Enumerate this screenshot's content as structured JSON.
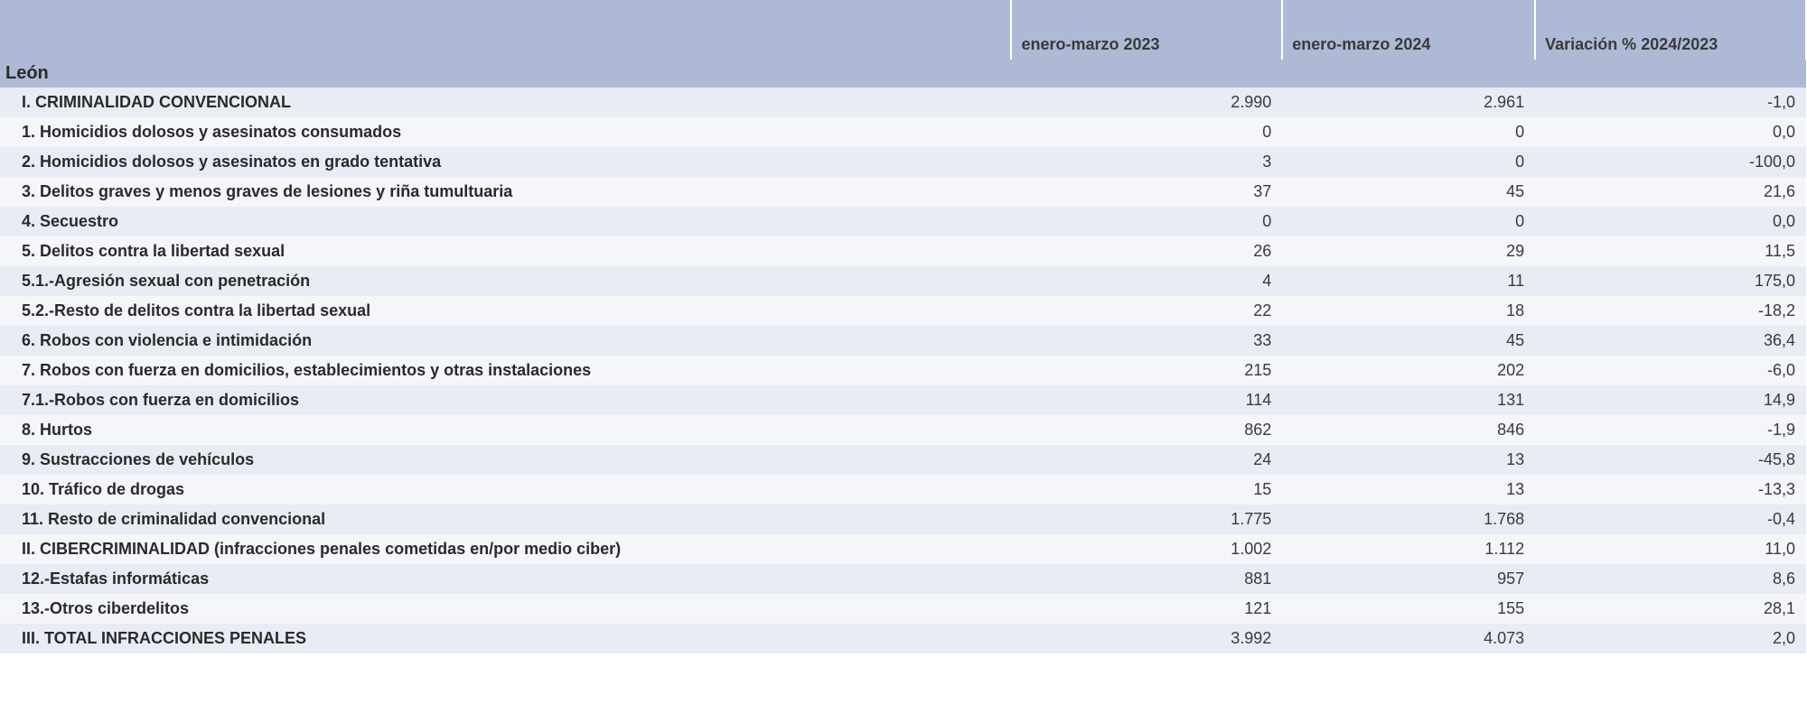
{
  "table": {
    "type": "table",
    "columns": {
      "blank": "",
      "period1": "enero-marzo 2023",
      "period2": "enero-marzo 2024",
      "variation": "Variación % 2024/2023"
    },
    "region_label": "León",
    "rows": [
      {
        "label": "I. CRIMINALIDAD CONVENCIONAL",
        "y1": "2.990",
        "y2": "2.961",
        "var": "-1,0"
      },
      {
        "label": "1. Homicidios dolosos y asesinatos consumados",
        "y1": "0",
        "y2": "0",
        "var": "0,0"
      },
      {
        "label": "2. Homicidios dolosos y asesinatos en grado tentativa",
        "y1": "3",
        "y2": "0",
        "var": "-100,0"
      },
      {
        "label": "3. Delitos graves y menos graves de lesiones y riña tumultuaria",
        "y1": "37",
        "y2": "45",
        "var": "21,6"
      },
      {
        "label": "4. Secuestro",
        "y1": "0",
        "y2": "0",
        "var": "0,0"
      },
      {
        "label": "5. Delitos contra la libertad sexual",
        "y1": "26",
        "y2": "29",
        "var": "11,5"
      },
      {
        "label": "5.1.-Agresión sexual con penetración",
        "y1": "4",
        "y2": "11",
        "var": "175,0"
      },
      {
        "label": "5.2.-Resto de delitos contra la libertad sexual",
        "y1": "22",
        "y2": "18",
        "var": "-18,2"
      },
      {
        "label": "6. Robos con violencia e intimidación",
        "y1": "33",
        "y2": "45",
        "var": "36,4"
      },
      {
        "label": "7. Robos con fuerza en domicilios, establecimientos y otras instalaciones",
        "y1": "215",
        "y2": "202",
        "var": "-6,0"
      },
      {
        "label": "7.1.-Robos con fuerza en domicilios",
        "y1": "114",
        "y2": "131",
        "var": "14,9"
      },
      {
        "label": "8. Hurtos",
        "y1": "862",
        "y2": "846",
        "var": "-1,9"
      },
      {
        "label": "9. Sustracciones de vehículos",
        "y1": "24",
        "y2": "13",
        "var": "-45,8"
      },
      {
        "label": "10. Tráfico de drogas",
        "y1": "15",
        "y2": "13",
        "var": "-13,3"
      },
      {
        "label": "11. Resto de criminalidad convencional",
        "y1": "1.775",
        "y2": "1.768",
        "var": "-0,4"
      },
      {
        "label": "II. CIBERCRIMINALIDAD (infracciones penales cometidas en/por medio ciber)",
        "y1": "1.002",
        "y2": "1.112",
        "var": "11,0"
      },
      {
        "label": "12.-Estafas informáticas",
        "y1": "881",
        "y2": "957",
        "var": "8,6"
      },
      {
        "label": "13.-Otros ciberdelitos",
        "y1": "121",
        "y2": "155",
        "var": "28,1"
      },
      {
        "label": "III. TOTAL INFRACCIONES PENALES",
        "y1": "3.992",
        "y2": "4.073",
        "var": "2,0"
      }
    ],
    "styles": {
      "header_bg": "#aebad5",
      "row_odd_bg": "#f4f6fa",
      "row_even_bg": "#e8ecf4",
      "text_color": "#3a3a3a",
      "label_color": "#2a2a2a",
      "font_family": "Arial",
      "header_fontsize": 18,
      "cell_fontsize": 18,
      "region_fontsize": 20
    }
  }
}
